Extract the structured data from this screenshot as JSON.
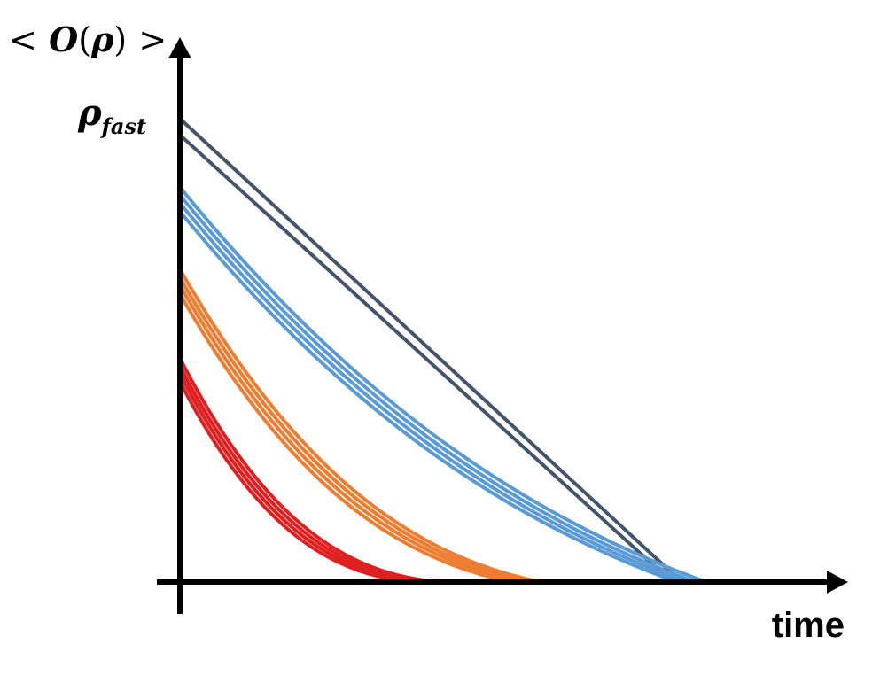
{
  "y_axis": {
    "prefix": "<",
    "O": "O",
    "open": "(",
    "rho": "ρ",
    "close": ")",
    "suffix": ">"
  },
  "tick": {
    "rho": "ρ",
    "sub": "fast"
  },
  "x_axis": {
    "label": "time"
  },
  "colors": {
    "axis": "#000000",
    "dark": "#44546a",
    "blue": "#5b9bd5",
    "orange": "#ed7d31",
    "red": "#e02020"
  },
  "groups": [
    {
      "name": "dark",
      "color": "dark",
      "curvature": 0.0,
      "starts": [
        1.0,
        0.965
      ],
      "ends": [
        0.866,
        0.849
      ]
    },
    {
      "name": "blue",
      "color": "blue",
      "curvature": 0.18,
      "starts": [
        0.852,
        0.835,
        0.818,
        0.8
      ],
      "ends": [
        0.908,
        0.89,
        0.874,
        0.858
      ]
    },
    {
      "name": "orange",
      "color": "orange",
      "curvature": 0.28,
      "starts": [
        0.675,
        0.657,
        0.64,
        0.622
      ],
      "ends": [
        0.623,
        0.607,
        0.59,
        0.573
      ]
    },
    {
      "name": "red",
      "color": "red",
      "curvature": 0.35,
      "starts": [
        0.483,
        0.466,
        0.45,
        0.433
      ],
      "ends": [
        0.455,
        0.44,
        0.425,
        0.41
      ]
    }
  ]
}
